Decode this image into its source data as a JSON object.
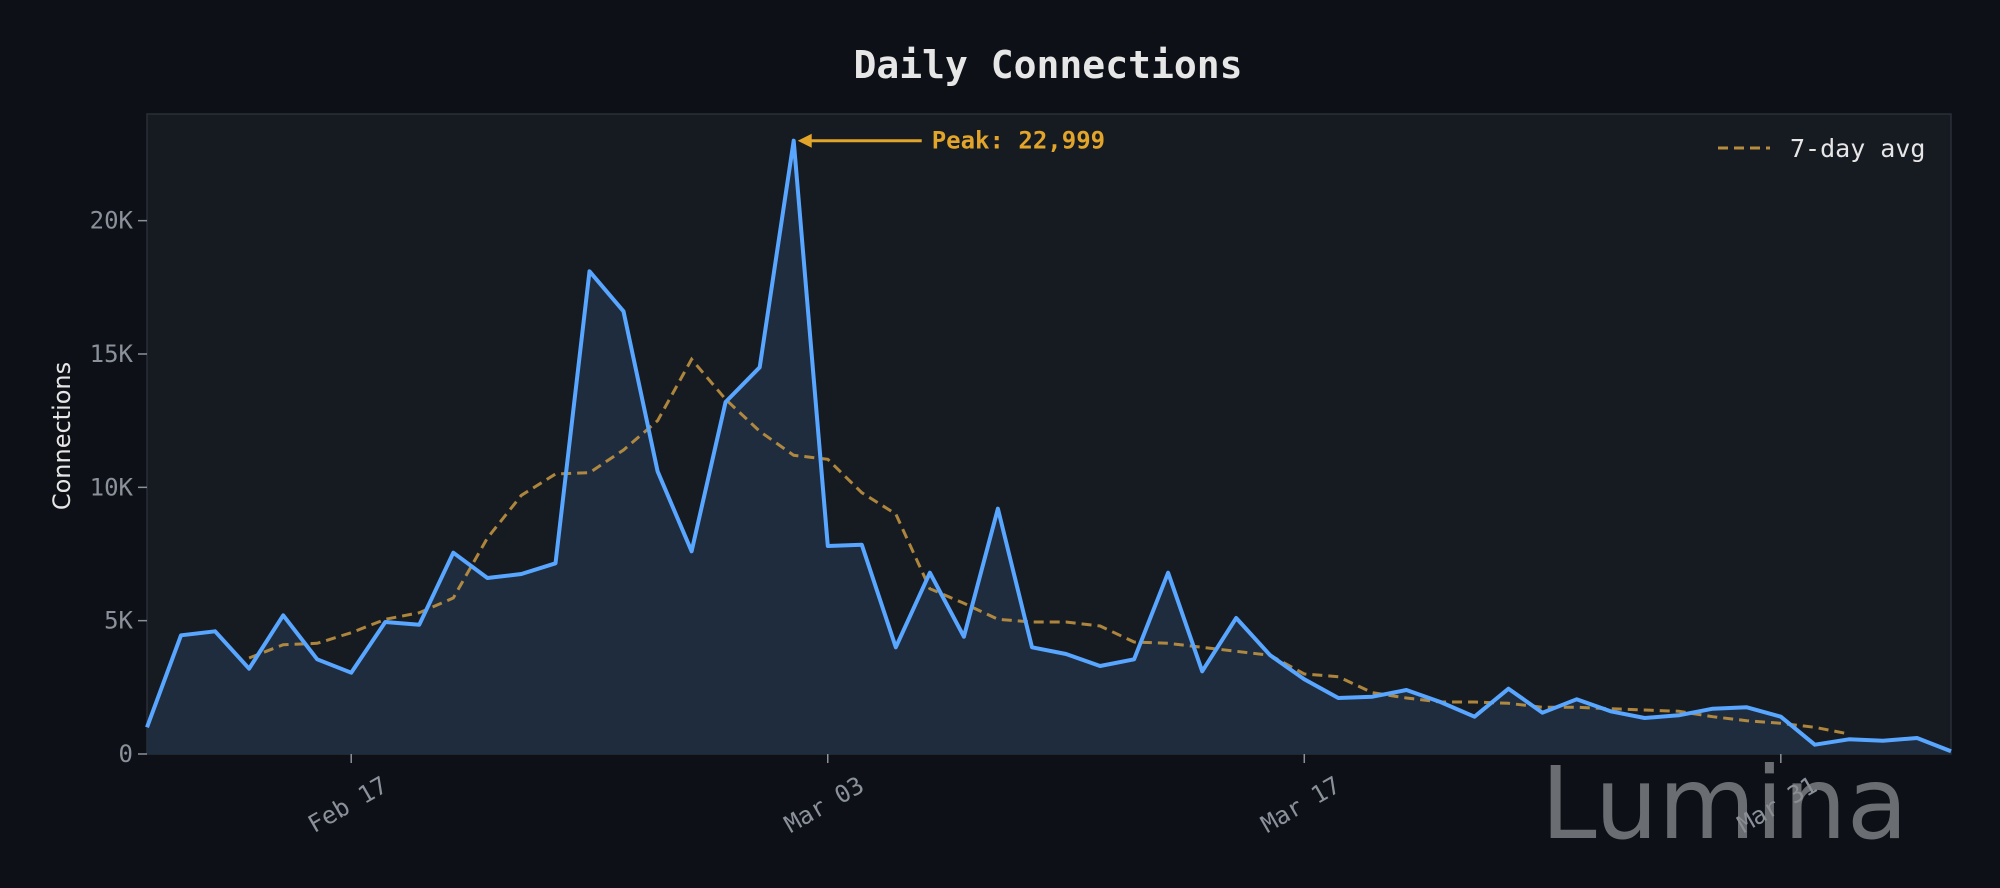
{
  "chart_data": {
    "type": "area",
    "title": "Daily Connections",
    "xlabel": "",
    "ylabel": "Connections",
    "ylim": [
      0,
      24000
    ],
    "yticks": [
      {
        "value": 0,
        "label": "0"
      },
      {
        "value": 5000,
        "label": "5K"
      },
      {
        "value": 10000,
        "label": "10K"
      },
      {
        "value": 15000,
        "label": "15K"
      },
      {
        "value": 20000,
        "label": "20K"
      }
    ],
    "xticks": [
      {
        "index": 6,
        "label": "Feb 17"
      },
      {
        "index": 20,
        "label": "Mar 03"
      },
      {
        "index": 34,
        "label": "Mar 17"
      },
      {
        "index": 48,
        "label": "Mar 31"
      }
    ],
    "grid": false,
    "legend": "top-right",
    "series": [
      {
        "values": [
          1000,
          4450,
          4600,
          3200,
          5200,
          3550,
          3050,
          4950,
          4850,
          7550,
          6600,
          6750,
          7150,
          18100,
          16600,
          10600,
          7600,
          13200,
          14500,
          22999,
          7800,
          7850,
          4000,
          6800,
          4400,
          9200,
          4000,
          3750,
          3300,
          3550,
          6800,
          3100,
          5100,
          3700,
          2800,
          2100,
          2150,
          2400,
          1950,
          1400,
          2450,
          1550,
          2050,
          1600,
          1350,
          1450,
          1700,
          1750,
          1400,
          350,
          550,
          500,
          600,
          100
        ],
        "color": "#58a6ff"
      },
      {
        "name": "7-day avg",
        "values": [
          null,
          null,
          null,
          3600,
          4100,
          4150,
          4550,
          5050,
          5300,
          5850,
          8100,
          9700,
          10500,
          10550,
          11400,
          12500,
          14800,
          13300,
          12100,
          11200,
          11050,
          9800,
          9000,
          6200,
          5650,
          5050,
          4950,
          4950,
          4800,
          4200,
          4150,
          4000,
          3850,
          3700,
          3000,
          2900,
          2300,
          2100,
          1950,
          1950,
          1900,
          1750,
          1750,
          1700,
          1650,
          1600,
          1400,
          1250,
          1150,
          1000,
          750,
          null,
          null,
          null
        ],
        "color": "#d3a043",
        "dashed": true
      }
    ],
    "annotation": {
      "text": "Peak: 22,999",
      "index": 19,
      "value": 22999,
      "color": "#e3a42a"
    }
  },
  "watermark": "Lumina"
}
